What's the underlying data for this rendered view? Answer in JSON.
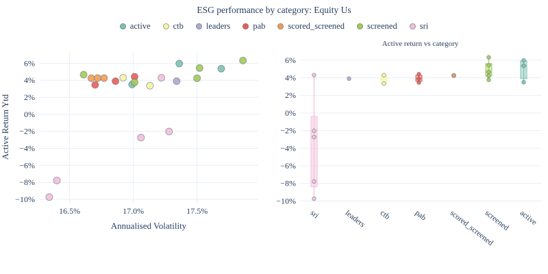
{
  "header": {
    "title": "ESG performance by category: Equity Us"
  },
  "legend": {
    "items": [
      {
        "label": "active",
        "color": "#7DC2AE"
      },
      {
        "label": "ctb",
        "color": "#F6F3A5"
      },
      {
        "label": "leaders",
        "color": "#AFAACB"
      },
      {
        "label": "pab",
        "color": "#EA5D52"
      },
      {
        "label": "scored_screened",
        "color": "#F49C52"
      },
      {
        "label": "screened",
        "color": "#A2CB55"
      },
      {
        "label": "sri",
        "color": "#F3BFD9"
      }
    ]
  },
  "colors": {
    "text": "#2a3f5f",
    "grid": "#E8EEF6",
    "marker_outline": "#5d6f83",
    "background": "#ffffff"
  },
  "chart_data": [
    {
      "type": "scatter",
      "title": "",
      "xlabel": "Annualised Volatility",
      "ylabel": "Active Return Ytd",
      "xlim": [
        16.26,
        17.98
      ],
      "ylim": [
        -10.4,
        7.4
      ],
      "grid": true,
      "xticks": [
        {
          "v": 16.5,
          "label": "16.5%"
        },
        {
          "v": 17.0,
          "label": "17.0%"
        },
        {
          "v": 17.5,
          "label": "17.5%"
        }
      ],
      "yticks": [
        {
          "v": 6,
          "label": "6%"
        },
        {
          "v": 4,
          "label": "4%"
        },
        {
          "v": 2,
          "label": "2%"
        },
        {
          "v": 0,
          "label": "0%"
        },
        {
          "v": -2,
          "label": "−2%"
        },
        {
          "v": -4,
          "label": "−4%"
        },
        {
          "v": -6,
          "label": "−6%"
        },
        {
          "v": -8,
          "label": "−8%"
        },
        {
          "v": -10,
          "label": "−10%"
        }
      ],
      "series": [
        {
          "name": "active",
          "points": [
            [
              16.99,
              3.5
            ],
            [
              17.36,
              5.97
            ],
            [
              17.69,
              5.36
            ]
          ]
        },
        {
          "name": "ctb",
          "points": [
            [
              16.92,
              4.3
            ],
            [
              17.13,
              3.36
            ]
          ]
        },
        {
          "name": "leaders",
          "points": [
            [
              17.34,
              3.9
            ]
          ]
        },
        {
          "name": "pab",
          "points": [
            [
              16.7,
              3.46
            ],
            [
              16.86,
              3.9
            ],
            [
              17.01,
              4.42
            ]
          ]
        },
        {
          "name": "scored_screened",
          "points": [
            [
              16.67,
              4.25
            ],
            [
              16.72,
              4.26
            ],
            [
              16.77,
              4.26
            ]
          ]
        },
        {
          "name": "screened",
          "points": [
            [
              16.61,
              4.66
            ],
            [
              17.01,
              3.76
            ],
            [
              17.5,
              4.24
            ],
            [
              17.52,
              5.44
            ],
            [
              17.86,
              6.32
            ]
          ]
        },
        {
          "name": "sri",
          "points": [
            [
              16.34,
              -9.73
            ],
            [
              16.4,
              -7.78
            ],
            [
              17.06,
              -2.74
            ],
            [
              17.28,
              -2.02
            ],
            [
              17.22,
              4.3
            ]
          ]
        }
      ]
    },
    {
      "type": "box",
      "title": "Active return vs category",
      "xlabel": "",
      "ylabel": "",
      "ylim": [
        -10.2,
        7.0
      ],
      "grid": true,
      "yticks": [
        {
          "v": 6,
          "label": "6%"
        },
        {
          "v": 4,
          "label": "4%"
        },
        {
          "v": 2,
          "label": "2%"
        },
        {
          "v": 0,
          "label": "0%"
        },
        {
          "v": -2,
          "label": "−2%"
        },
        {
          "v": -4,
          "label": "−4%"
        },
        {
          "v": -6,
          "label": "−6%"
        },
        {
          "v": -8,
          "label": "−8%"
        },
        {
          "v": -10,
          "label": "−10%"
        }
      ],
      "categories": [
        {
          "name": "sri",
          "points": [
            4.3,
            -2.02,
            -2.74,
            -7.78,
            -9.73
          ],
          "box": [
            -8.4,
            -0.4
          ],
          "median": -2.74,
          "whiskers": [
            -9.73,
            4.3
          ]
        },
        {
          "name": "leaders",
          "points": [
            3.9
          ],
          "box": [
            3.9,
            3.9
          ],
          "median": 3.9,
          "whiskers": [
            3.9,
            3.9
          ]
        },
        {
          "name": "ctb",
          "points": [
            4.3,
            3.36
          ],
          "box": [
            3.4,
            4.26
          ],
          "median": 3.83,
          "whiskers": [
            3.36,
            4.3
          ]
        },
        {
          "name": "pab",
          "points": [
            4.42,
            3.9,
            3.46
          ],
          "box": [
            3.6,
            4.3
          ],
          "median": 3.9,
          "whiskers": [
            3.46,
            4.42
          ]
        },
        {
          "name": "scored_screened",
          "points": [
            4.25,
            4.26,
            4.26
          ],
          "box": [
            4.25,
            4.26
          ],
          "median": 4.26,
          "whiskers": [
            4.25,
            4.26
          ]
        },
        {
          "name": "screened",
          "points": [
            6.32,
            5.44,
            4.66,
            4.24,
            3.76
          ],
          "box": [
            4.2,
            5.6
          ],
          "median": 4.66,
          "whiskers": [
            3.76,
            6.32
          ]
        },
        {
          "name": "active",
          "points": [
            5.97,
            5.36,
            3.5
          ],
          "box": [
            3.9,
            5.92
          ],
          "median": 5.36,
          "whiskers": [
            3.5,
            5.97
          ]
        }
      ]
    }
  ]
}
